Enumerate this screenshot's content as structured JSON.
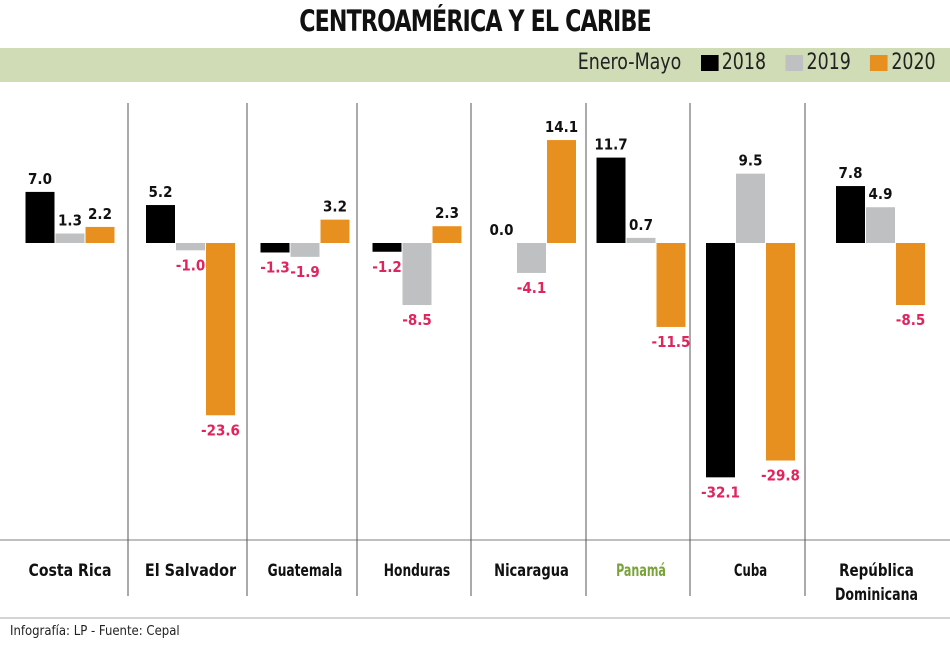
{
  "chart_data": {
    "type": "bar",
    "title": "CENTROAMÉRICA Y EL CARIBE",
    "subtitle": "Enero-Mayo",
    "categories": [
      "Costa Rica",
      "El Salvador",
      "Guatemala",
      "Honduras",
      "Nicaragua",
      "Panamá",
      "Cuba",
      "República Dominicana"
    ],
    "series": [
      {
        "name": "2018",
        "color": "#000000",
        "values": [
          7.0,
          5.2,
          -1.3,
          -1.2,
          0.0,
          11.7,
          -32.1,
          7.8
        ]
      },
      {
        "name": "2019",
        "color": "#bfc0c2",
        "values": [
          1.3,
          -1.0,
          -1.9,
          -8.5,
          -4.1,
          0.7,
          9.5,
          4.9
        ]
      },
      {
        "name": "2020",
        "color": "#e8901f",
        "values": [
          2.2,
          -23.6,
          3.2,
          2.3,
          14.1,
          -11.5,
          -29.8,
          -8.5
        ]
      }
    ],
    "highlight_category": "Panamá",
    "highlight_color": "#7aa33a",
    "negative_label_color": "#e0245e",
    "legend_placement": "top-right",
    "grid": false,
    "ylim": [
      -33,
      15
    ]
  },
  "source": "Infografía: LP - Fuente: Cepal"
}
